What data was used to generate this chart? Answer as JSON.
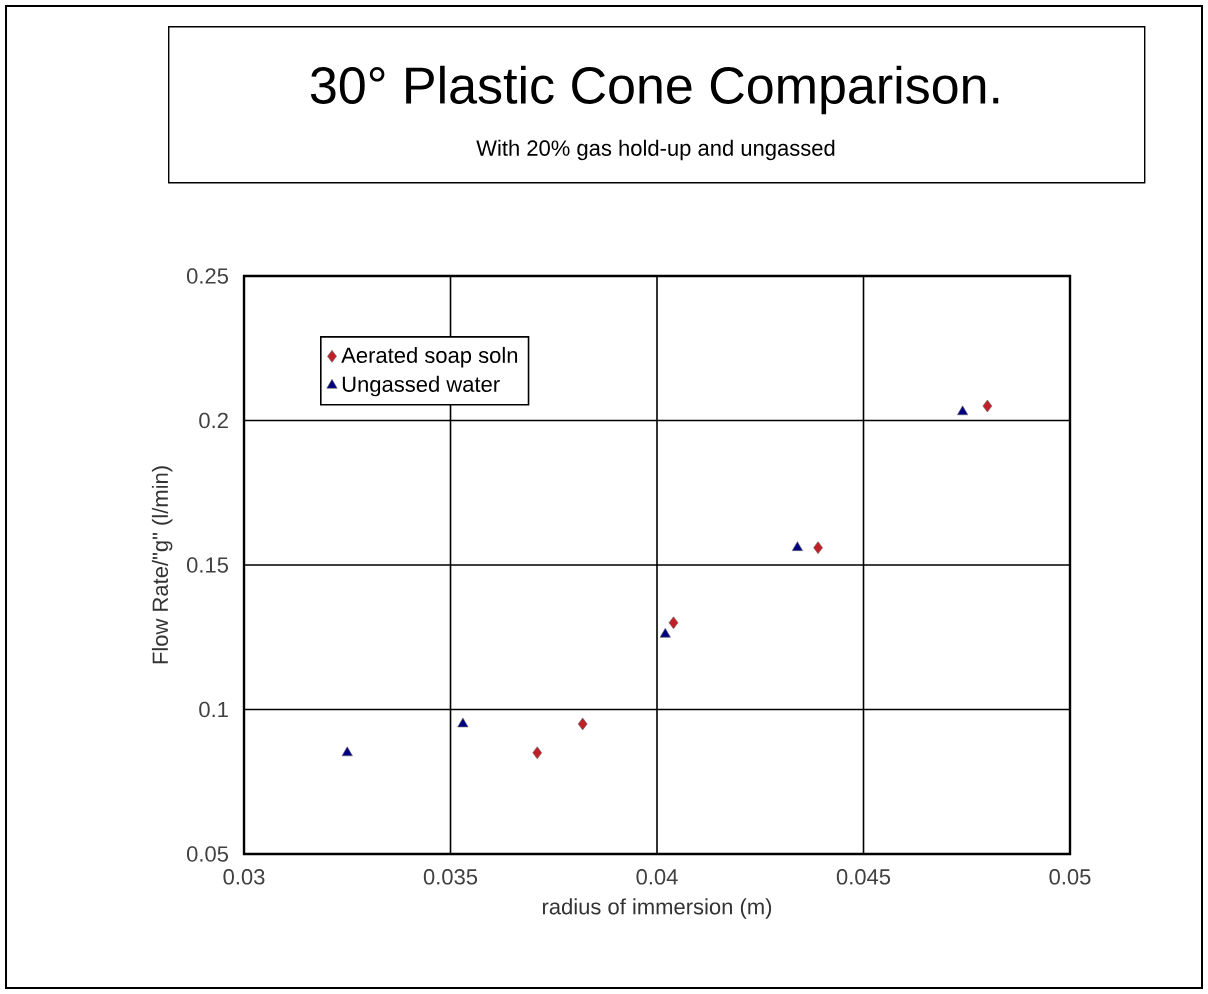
{
  "chart_data": {
    "type": "scatter",
    "title": "30° Plastic Cone Comparison.",
    "subtitle": "With 20% gas hold-up and ungassed",
    "xlabel": "radius of immersion (m)",
    "ylabel": "Flow Rate/\"g\"  (l/min)",
    "series": [
      {
        "name": "Aerated soap soln",
        "color": "#c0202a",
        "marker": "diamond",
        "x": [
          0.0371,
          0.0382,
          0.0404,
          0.0439,
          0.048
        ],
        "values": [
          0.085,
          0.095,
          0.13,
          0.156,
          0.205
        ]
      },
      {
        "name": "Ungassed water",
        "color": "#000080",
        "marker": "triangle",
        "x": [
          0.0325,
          0.0353,
          0.0402,
          0.0434,
          0.0474
        ],
        "values": [
          0.085,
          0.095,
          0.126,
          0.156,
          0.203
        ]
      }
    ],
    "xlim": [
      0.03,
      0.05
    ],
    "xticks": [
      0.03,
      0.035,
      0.04,
      0.045,
      0.05
    ],
    "ylim": [
      0.05,
      0.25
    ],
    "yticks": [
      0.05,
      0.1,
      0.15,
      0.2,
      0.25
    ],
    "grid": true,
    "legend": "top left"
  }
}
